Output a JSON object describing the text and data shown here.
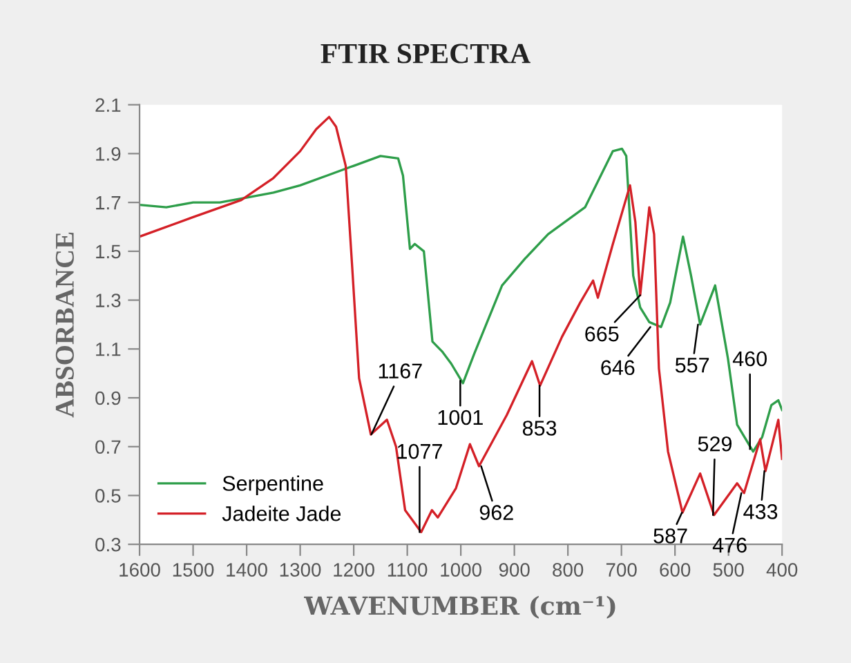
{
  "chart_data": {
    "type": "line",
    "title": "FTIR SPECTRA",
    "xlabel": "WAVENUMBER (cm⁻¹)",
    "ylabel": "ABSORBANCE",
    "xlim": [
      1600,
      400
    ],
    "xticks": [
      1600,
      1500,
      1400,
      1300,
      1200,
      1100,
      1000,
      900,
      800,
      700,
      600,
      500,
      400
    ],
    "ylim": [
      0.3,
      2.1
    ],
    "yticks": [
      0.3,
      0.5,
      0.7,
      0.9,
      1.1,
      1.3,
      1.5,
      1.7,
      1.9,
      2.1
    ],
    "grid": false,
    "legend": "bottom left",
    "series": [
      {
        "name": "Serpentine",
        "color": "#2e9e4a",
        "x": [
          1600,
          1550,
          1500,
          1450,
          1400,
          1350,
          1300,
          1250,
          1200,
          1150,
          1117,
          1108,
          1095,
          1086,
          1069,
          1053,
          1035,
          1018,
          996,
          975,
          923,
          880,
          837,
          768,
          716,
          699,
          691,
          678,
          665,
          648,
          626,
          609,
          585,
          570,
          553,
          525,
          501,
          484,
          454,
          437,
          420,
          407,
          400
        ],
        "values": [
          1.69,
          1.68,
          1.7,
          1.7,
          1.72,
          1.74,
          1.77,
          1.81,
          1.85,
          1.89,
          1.88,
          1.81,
          1.51,
          1.53,
          1.5,
          1.13,
          1.09,
          1.04,
          0.96,
          1.08,
          1.36,
          1.47,
          1.57,
          1.68,
          1.91,
          1.92,
          1.89,
          1.4,
          1.27,
          1.21,
          1.19,
          1.29,
          1.56,
          1.4,
          1.2,
          1.36,
          1.06,
          0.79,
          0.68,
          0.74,
          0.87,
          0.89,
          0.85
        ]
      },
      {
        "name": "Jadeite Jade",
        "color": "#d42027",
        "x": [
          1600,
          1500,
          1410,
          1350,
          1300,
          1270,
          1246,
          1233,
          1215,
          1203,
          1190,
          1168,
          1138,
          1121,
          1104,
          1074,
          1054,
          1043,
          1009,
          983,
          966,
          914,
          867,
          852,
          811,
          777,
          753,
          744,
          716,
          684,
          674,
          665,
          648,
          639,
          630,
          613,
          586,
          553,
          527,
          484,
          471,
          441,
          431,
          407,
          400
        ],
        "values": [
          1.56,
          1.64,
          1.71,
          1.8,
          1.91,
          2.0,
          2.05,
          2.01,
          1.85,
          1.44,
          0.98,
          0.75,
          0.81,
          0.7,
          0.44,
          0.35,
          0.44,
          0.41,
          0.53,
          0.71,
          0.62,
          0.83,
          1.05,
          0.95,
          1.15,
          1.29,
          1.38,
          1.31,
          1.53,
          1.77,
          1.62,
          1.32,
          1.68,
          1.57,
          1.02,
          0.68,
          0.43,
          0.59,
          0.42,
          0.55,
          0.51,
          0.73,
          0.6,
          0.81,
          0.65
        ]
      }
    ],
    "annotations": [
      {
        "text": "1167",
        "x": 1167,
        "y": 0.75
      },
      {
        "text": "1077",
        "x": 1077,
        "y": 0.35
      },
      {
        "text": "1001",
        "x": 1001,
        "y": 0.97
      },
      {
        "text": "962",
        "x": 962,
        "y": 0.62
      },
      {
        "text": "853",
        "x": 853,
        "y": 0.95
      },
      {
        "text": "665",
        "x": 665,
        "y": 1.32
      },
      {
        "text": "646",
        "x": 646,
        "y": 1.19
      },
      {
        "text": "557",
        "x": 557,
        "y": 1.2
      },
      {
        "text": "460",
        "x": 460,
        "y": 0.69
      },
      {
        "text": "529",
        "x": 529,
        "y": 0.42
      },
      {
        "text": "587",
        "x": 587,
        "y": 0.43
      },
      {
        "text": "476",
        "x": 476,
        "y": 0.51
      },
      {
        "text": "433",
        "x": 433,
        "y": 0.6
      }
    ]
  }
}
